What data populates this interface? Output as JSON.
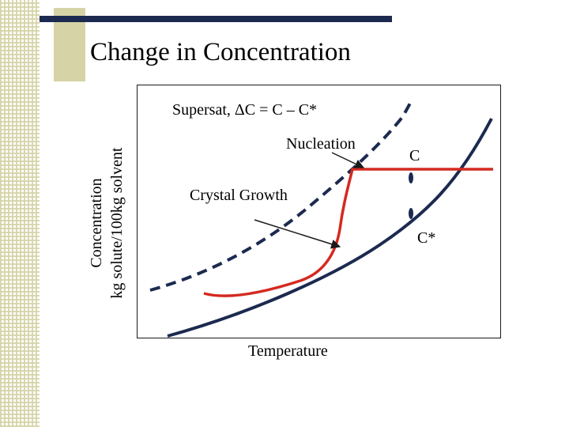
{
  "slide": {
    "title": "Change in Concentration"
  },
  "diagram": {
    "type": "solubility-supersaturation-curve",
    "supersat_label": "Supersat, ΔC = C – C*",
    "nucleation_label": "Nucleation",
    "crystal_growth_label": "Crystal Growth",
    "concentration_marker": "C",
    "solubility_marker": "C*",
    "xlabel": "Temperature",
    "ylabel_line1": "Concentration",
    "ylabel_line2": "kg solute/100kg solvent",
    "curves": [
      {
        "name": "supersolubility curve",
        "style": "dashed",
        "color": "#1c2a50"
      },
      {
        "name": "solubility curve",
        "style": "solid",
        "color": "#1c2a50"
      },
      {
        "name": "concentration path",
        "style": "solid",
        "color": "#d42a20"
      }
    ]
  }
}
